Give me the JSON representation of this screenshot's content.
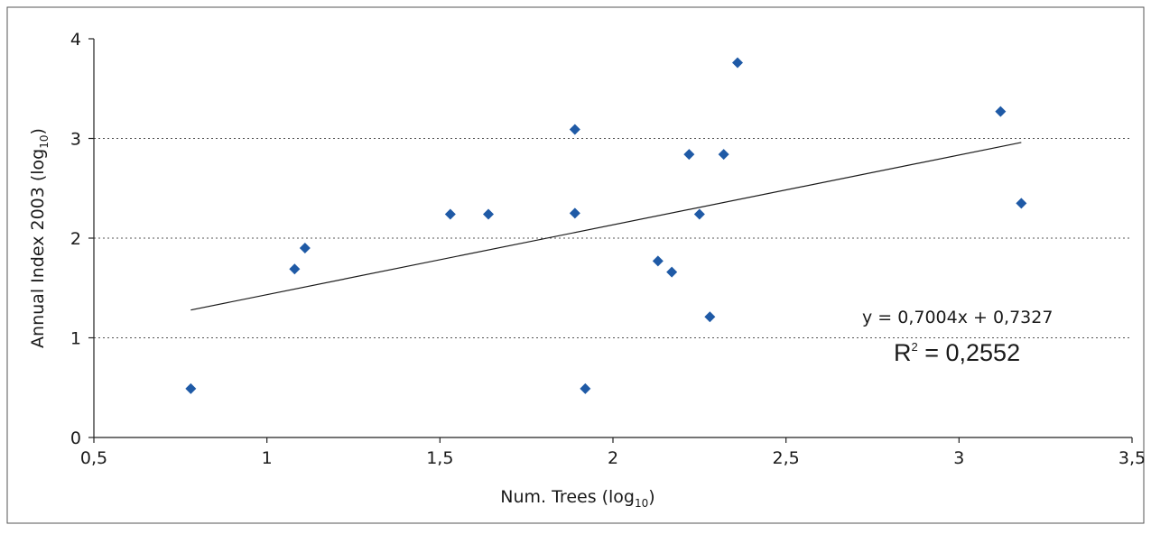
{
  "chart_data": {
    "type": "scatter",
    "title": "",
    "xlabel": "Num. Trees",
    "xlabel_log": "(log",
    "xlabel_sub": "10",
    "xlabel_close": ")",
    "ylabel": "Annual Index 2003",
    "ylabel_log": "(log",
    "ylabel_sub": "10",
    "ylabel_close": ")",
    "xlim": [
      0.5,
      3.5
    ],
    "ylim": [
      0,
      4
    ],
    "x_ticks": [
      {
        "value": 0.5,
        "label": "0,5"
      },
      {
        "value": 1,
        "label": "1"
      },
      {
        "value": 1.5,
        "label": "1,5"
      },
      {
        "value": 2,
        "label": "2"
      },
      {
        "value": 2.5,
        "label": "2,5"
      },
      {
        "value": 3,
        "label": "3"
      },
      {
        "value": 3.5,
        "label": "3,5"
      }
    ],
    "y_ticks": [
      {
        "value": 0,
        "label": "0"
      },
      {
        "value": 1,
        "label": "1"
      },
      {
        "value": 2,
        "label": "2"
      },
      {
        "value": 3,
        "label": "3"
      },
      {
        "value": 4,
        "label": "4"
      }
    ],
    "grid": "horizontal-dotted",
    "marker_color": "#1f5aa6",
    "series": [
      {
        "points": [
          {
            "x": 0.78,
            "y": 0.49
          },
          {
            "x": 1.08,
            "y": 1.69
          },
          {
            "x": 1.11,
            "y": 1.9
          },
          {
            "x": 1.53,
            "y": 2.24
          },
          {
            "x": 1.64,
            "y": 2.24
          },
          {
            "x": 1.89,
            "y": 2.25
          },
          {
            "x": 1.89,
            "y": 3.09
          },
          {
            "x": 1.92,
            "y": 0.49
          },
          {
            "x": 2.13,
            "y": 1.77
          },
          {
            "x": 2.17,
            "y": 1.66
          },
          {
            "x": 2.22,
            "y": 2.84
          },
          {
            "x": 2.25,
            "y": 2.24
          },
          {
            "x": 2.28,
            "y": 1.21
          },
          {
            "x": 2.32,
            "y": 2.84
          },
          {
            "x": 2.36,
            "y": 3.76
          },
          {
            "x": 3.12,
            "y": 3.27
          },
          {
            "x": 3.18,
            "y": 2.35
          }
        ]
      }
    ],
    "trendline": {
      "slope": 0.7004,
      "intercept": 0.7327,
      "x_range": [
        0.78,
        3.18
      ],
      "equation": "y = 0,7004x + 0,7327",
      "r2_prefix": "R",
      "r2_sup": "2",
      "r2_value": " = 0,2552"
    }
  }
}
